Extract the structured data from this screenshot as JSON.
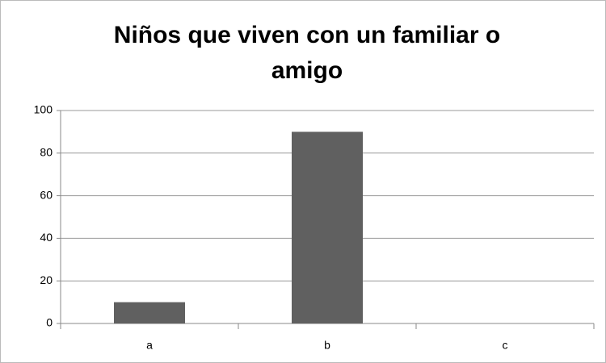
{
  "chart_data": {
    "type": "bar",
    "title": "Niños que viven con un familiar o amigo",
    "categories": [
      "a",
      "b",
      "c"
    ],
    "values": [
      10,
      90,
      0
    ],
    "color": "#606060",
    "ylim": [
      0,
      100
    ],
    "yticks": [
      0,
      20,
      40,
      60,
      80,
      100
    ],
    "grid": true
  }
}
